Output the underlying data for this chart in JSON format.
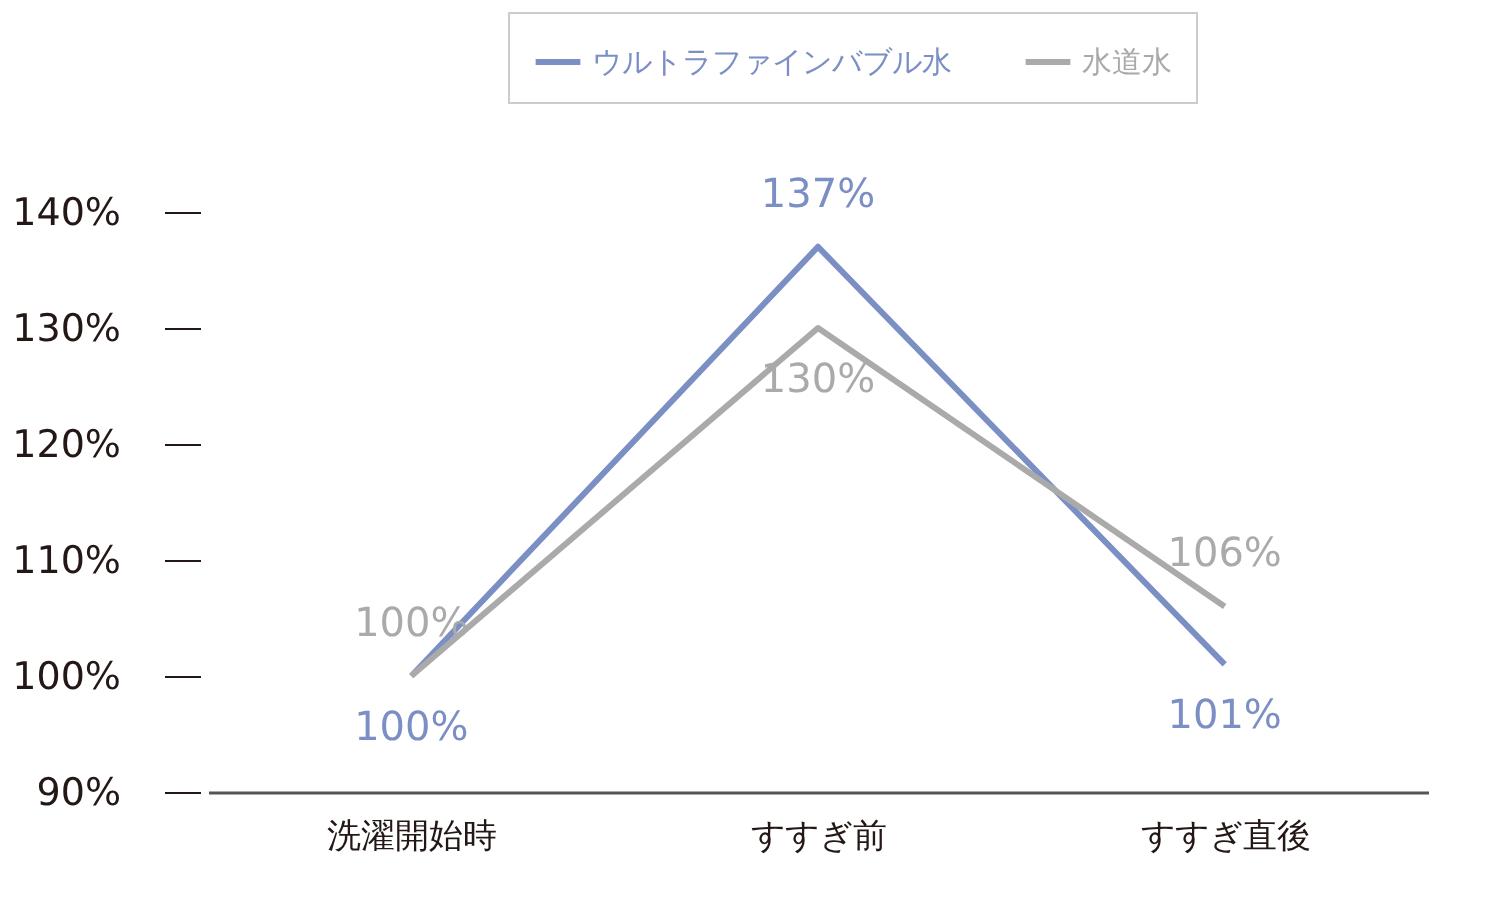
{
  "chart_data": {
    "type": "line",
    "categories": [
      "洗濯開始時",
      "すすぎ前",
      "すすぎ直後"
    ],
    "series": [
      {
        "name": "ウルトラファインバブル水",
        "color": "#7b8fc4",
        "values": [
          100,
          137,
          101
        ],
        "value_labels": [
          "100%",
          "137%",
          "101%"
        ]
      },
      {
        "name": "水道水",
        "color": "#aaaaaa",
        "values": [
          100,
          130,
          106
        ],
        "value_labels": [
          "100%",
          "130%",
          "106%"
        ]
      }
    ],
    "ylim": [
      90,
      140
    ],
    "yticks": [
      {
        "value": 90,
        "label": "90%"
      },
      {
        "value": 100,
        "label": "100%"
      },
      {
        "value": 110,
        "label": "110%"
      },
      {
        "value": 120,
        "label": "120%"
      },
      {
        "value": 130,
        "label": "130%"
      },
      {
        "value": 140,
        "label": "140%"
      }
    ],
    "grid": false,
    "legend": "top right",
    "marker": "none",
    "line_style": "solid"
  }
}
